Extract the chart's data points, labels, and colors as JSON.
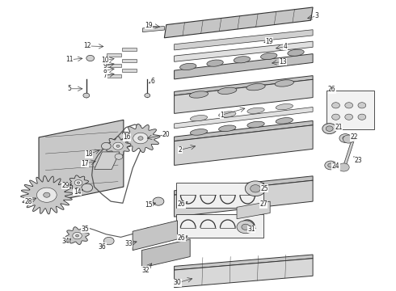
{
  "background_color": "#ffffff",
  "fig_width": 4.9,
  "fig_height": 3.6,
  "dpi": 100,
  "line_color": "#333333",
  "label_fontsize": 5.5,
  "label_color": "#222222",
  "label_positions": {
    "1": [
      0.56,
      0.605,
      0.625,
      0.63
    ],
    "2": [
      0.455,
      0.485,
      0.5,
      0.5
    ],
    "3": [
      0.8,
      0.945,
      0.77,
      0.935
    ],
    "4": [
      0.72,
      0.84,
      0.69,
      0.832
    ],
    "5": [
      0.175,
      0.695,
      0.215,
      0.695
    ],
    "6": [
      0.385,
      0.72,
      0.37,
      0.71
    ],
    "7": [
      0.265,
      0.74,
      0.295,
      0.748
    ],
    "8": [
      0.265,
      0.758,
      0.295,
      0.765
    ],
    "9": [
      0.265,
      0.775,
      0.295,
      0.782
    ],
    "10": [
      0.265,
      0.793,
      0.295,
      0.8
    ],
    "11": [
      0.175,
      0.795,
      0.215,
      0.8
    ],
    "12": [
      0.22,
      0.842,
      0.268,
      0.84
    ],
    "13": [
      0.715,
      0.788,
      0.68,
      0.782
    ],
    "14": [
      0.195,
      0.34,
      0.215,
      0.353
    ],
    "15": [
      0.375,
      0.295,
      0.4,
      0.305
    ],
    "16": [
      0.32,
      0.528,
      0.305,
      0.515
    ],
    "17": [
      0.215,
      0.438,
      0.248,
      0.448
    ],
    "18": [
      0.225,
      0.47,
      0.258,
      0.488
    ],
    "19a": [
      0.375,
      0.912,
      0.41,
      0.907
    ],
    "19b": [
      0.68,
      0.858,
      0.66,
      0.852
    ],
    "20": [
      0.42,
      0.538,
      0.365,
      0.523
    ],
    "21": [
      0.855,
      0.562,
      0.84,
      0.558
    ],
    "22": [
      0.895,
      0.528,
      0.878,
      0.525
    ],
    "23": [
      0.905,
      0.448,
      0.888,
      0.468
    ],
    "24": [
      0.848,
      0.428,
      0.84,
      0.433
    ],
    "25": [
      0.668,
      0.352,
      0.652,
      0.35
    ],
    "26a": [
      0.838,
      0.692,
      0.845,
      0.682
    ],
    "26b": [
      0.458,
      0.298,
      0.48,
      0.31
    ],
    "26c": [
      0.458,
      0.182,
      0.48,
      0.192
    ],
    "27": [
      0.665,
      0.298,
      0.652,
      0.292
    ],
    "28": [
      0.072,
      0.308,
      0.098,
      0.323
    ],
    "29": [
      0.165,
      0.362,
      0.188,
      0.37
    ],
    "30": [
      0.448,
      0.028,
      0.492,
      0.045
    ],
    "31": [
      0.635,
      0.212,
      0.62,
      0.218
    ],
    "32": [
      0.368,
      0.072,
      0.388,
      0.102
    ],
    "33": [
      0.325,
      0.162,
      0.352,
      0.172
    ],
    "34": [
      0.165,
      0.172,
      0.185,
      0.182
    ],
    "35": [
      0.215,
      0.212,
      0.232,
      0.218
    ],
    "36": [
      0.258,
      0.152,
      0.272,
      0.168
    ]
  }
}
